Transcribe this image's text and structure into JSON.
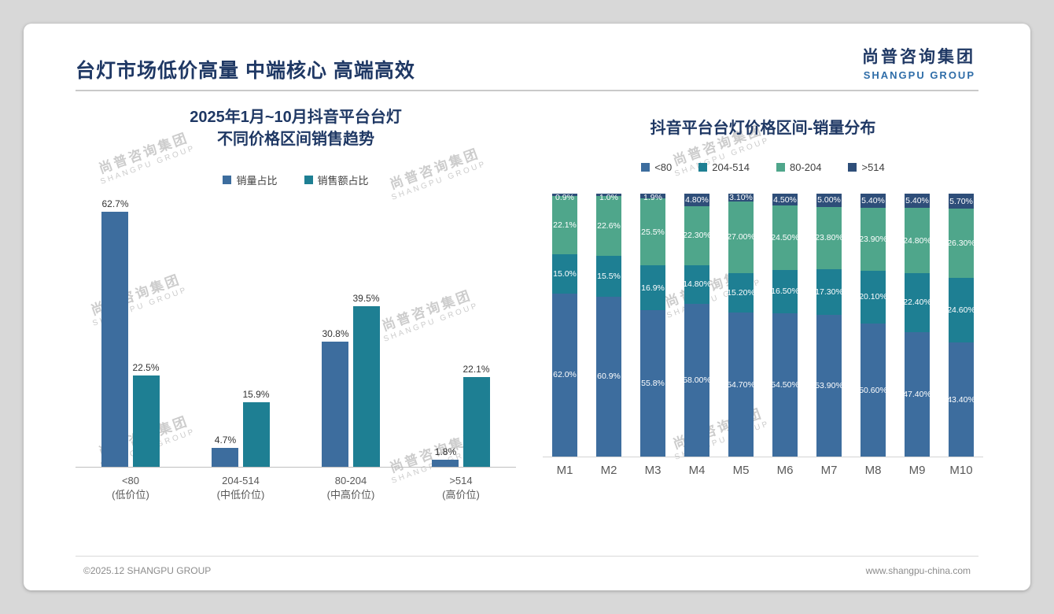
{
  "page": {
    "title": "台灯市场低价高量 中端核心 高端高效",
    "logo": {
      "cn": "尚普咨询集团",
      "en": "SHANGPU GROUP"
    },
    "watermark": {
      "cn": "尚普咨询集团",
      "en": "SHANGPU GROUP"
    },
    "footer": {
      "left": "©2025.12 SHANGPU GROUP",
      "right": "www.shangpu-china.com"
    }
  },
  "colors": {
    "blue": "#3D6D9E",
    "teal": "#1E7F93",
    "green": "#4FA68B",
    "navy": "#2E4E79",
    "title": "#1F3864"
  },
  "chart_data": [
    {
      "type": "bar",
      "title_lines": [
        "2025年1月~10月抖音平台台灯",
        "不同价格区间销售趋势"
      ],
      "categories": [
        "<80",
        "204-514",
        "80-204",
        ">514"
      ],
      "category_sublabels": [
        "(低价位)",
        "(中低价位)",
        "(中高价位)",
        "(高价位)"
      ],
      "series": [
        {
          "name": "销量占比",
          "color": "#3D6D9E",
          "values": [
            62.7,
            4.7,
            30.8,
            1.8
          ],
          "labels": [
            "62.7%",
            "4.7%",
            "30.8%",
            "1.8%"
          ]
        },
        {
          "name": "销售额占比",
          "color": "#1E7F93",
          "values": [
            22.5,
            15.9,
            39.5,
            22.1
          ],
          "labels": [
            "22.5%",
            "15.9%",
            "39.5%",
            "22.1%"
          ]
        }
      ],
      "ylabel": "",
      "xlabel": "",
      "ylim": [
        0,
        70
      ],
      "grid": false,
      "legend_position": "top",
      "value_label_suffix": "%"
    },
    {
      "type": "stacked-bar",
      "title": "抖音平台台灯价格区间-销量分布",
      "categories": [
        "M1",
        "M2",
        "M3",
        "M4",
        "M5",
        "M6",
        "M7",
        "M8",
        "M9",
        "M10"
      ],
      "normalized_to_100": true,
      "legend_position": "top",
      "series": [
        {
          "name": "<80",
          "color": "#3D6D9E",
          "values": [
            62.0,
            60.9,
            55.8,
            58.0,
            54.7,
            54.5,
            53.9,
            50.6,
            47.4,
            43.4
          ],
          "labels": [
            "62.0%",
            "60.9%",
            "55.8%",
            "58.00%",
            "54.70%",
            "54.50%",
            "53.90%",
            "50.60%",
            "47.40%",
            "43.40%"
          ]
        },
        {
          "name": "204-514",
          "color": "#1E7F93",
          "values": [
            15.0,
            15.5,
            16.9,
            14.8,
            15.2,
            16.5,
            17.3,
            20.1,
            22.4,
            24.6
          ],
          "labels": [
            "15.0%",
            "15.5%",
            "16.9%",
            "14.80%",
            "15.20%",
            "16.50%",
            "17.30%",
            "20.10%",
            "22.40%",
            "24.60%"
          ]
        },
        {
          "name": "80-204",
          "color": "#4FA68B",
          "values": [
            22.1,
            22.6,
            25.5,
            22.3,
            27.0,
            24.5,
            23.8,
            23.9,
            24.8,
            26.3
          ],
          "labels": [
            "22.1%",
            "22.6%",
            "25.5%",
            "22.30%",
            "27.00%",
            "24.50%",
            "23.80%",
            "23.90%",
            "24.80%",
            "26.30%"
          ]
        },
        {
          "name": ">514",
          "color": "#2E4E79",
          "values": [
            0.9,
            1.0,
            1.9,
            4.8,
            3.1,
            4.5,
            5.0,
            5.4,
            5.4,
            5.7
          ],
          "labels": [
            "0.9%",
            "1.0%",
            "1.9%",
            "4.80%",
            "3.10%",
            "4.50%",
            "5.00%",
            "5.40%",
            "5.40%",
            "5.70%"
          ]
        }
      ]
    }
  ]
}
